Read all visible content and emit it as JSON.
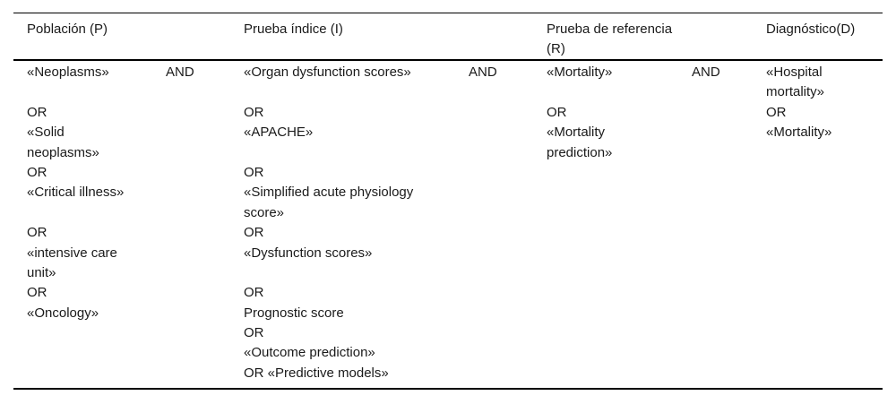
{
  "table": {
    "columns": [
      {
        "id": "poblacion",
        "header": "Población (P)",
        "lines": [
          "«Neoplasms»",
          "",
          "OR",
          "«Solid",
          "neoplasms»",
          "OR",
          "«Critical illness»",
          "",
          "OR",
          "«intensive care",
          "unit»",
          "OR",
          "«Oncology»"
        ]
      },
      {
        "id": "operator-1",
        "header": "",
        "lines": [
          "AND"
        ]
      },
      {
        "id": "prueba-indice",
        "header": "Prueba índice (I)",
        "lines": [
          "«Organ dysfunction scores»",
          "",
          "OR",
          "«APACHE»",
          "",
          "OR",
          "«Simplified acute physiology",
          "score»",
          "OR",
          "«Dysfunction scores»",
          "",
          "OR",
          "Prognostic score",
          "OR",
          "«Outcome prediction»",
          "OR «Predictive models»"
        ]
      },
      {
        "id": "operator-2",
        "header": "",
        "lines": [
          "AND"
        ]
      },
      {
        "id": "prueba-referencia",
        "header": "Prueba de referencia (R)",
        "lines": [
          "«Mortality»",
          "",
          "OR",
          "«Mortality",
          "prediction»"
        ]
      },
      {
        "id": "operator-3",
        "header": "",
        "lines": [
          "AND"
        ]
      },
      {
        "id": "diagnostico",
        "header": "Diagnóstico(D)",
        "lines": [
          "«Hospital",
          "mortality»",
          "OR",
          "«Mortality»"
        ]
      }
    ],
    "colors": {
      "text": "#1a1a1a",
      "rule": "#000000",
      "background": "#ffffff"
    }
  }
}
